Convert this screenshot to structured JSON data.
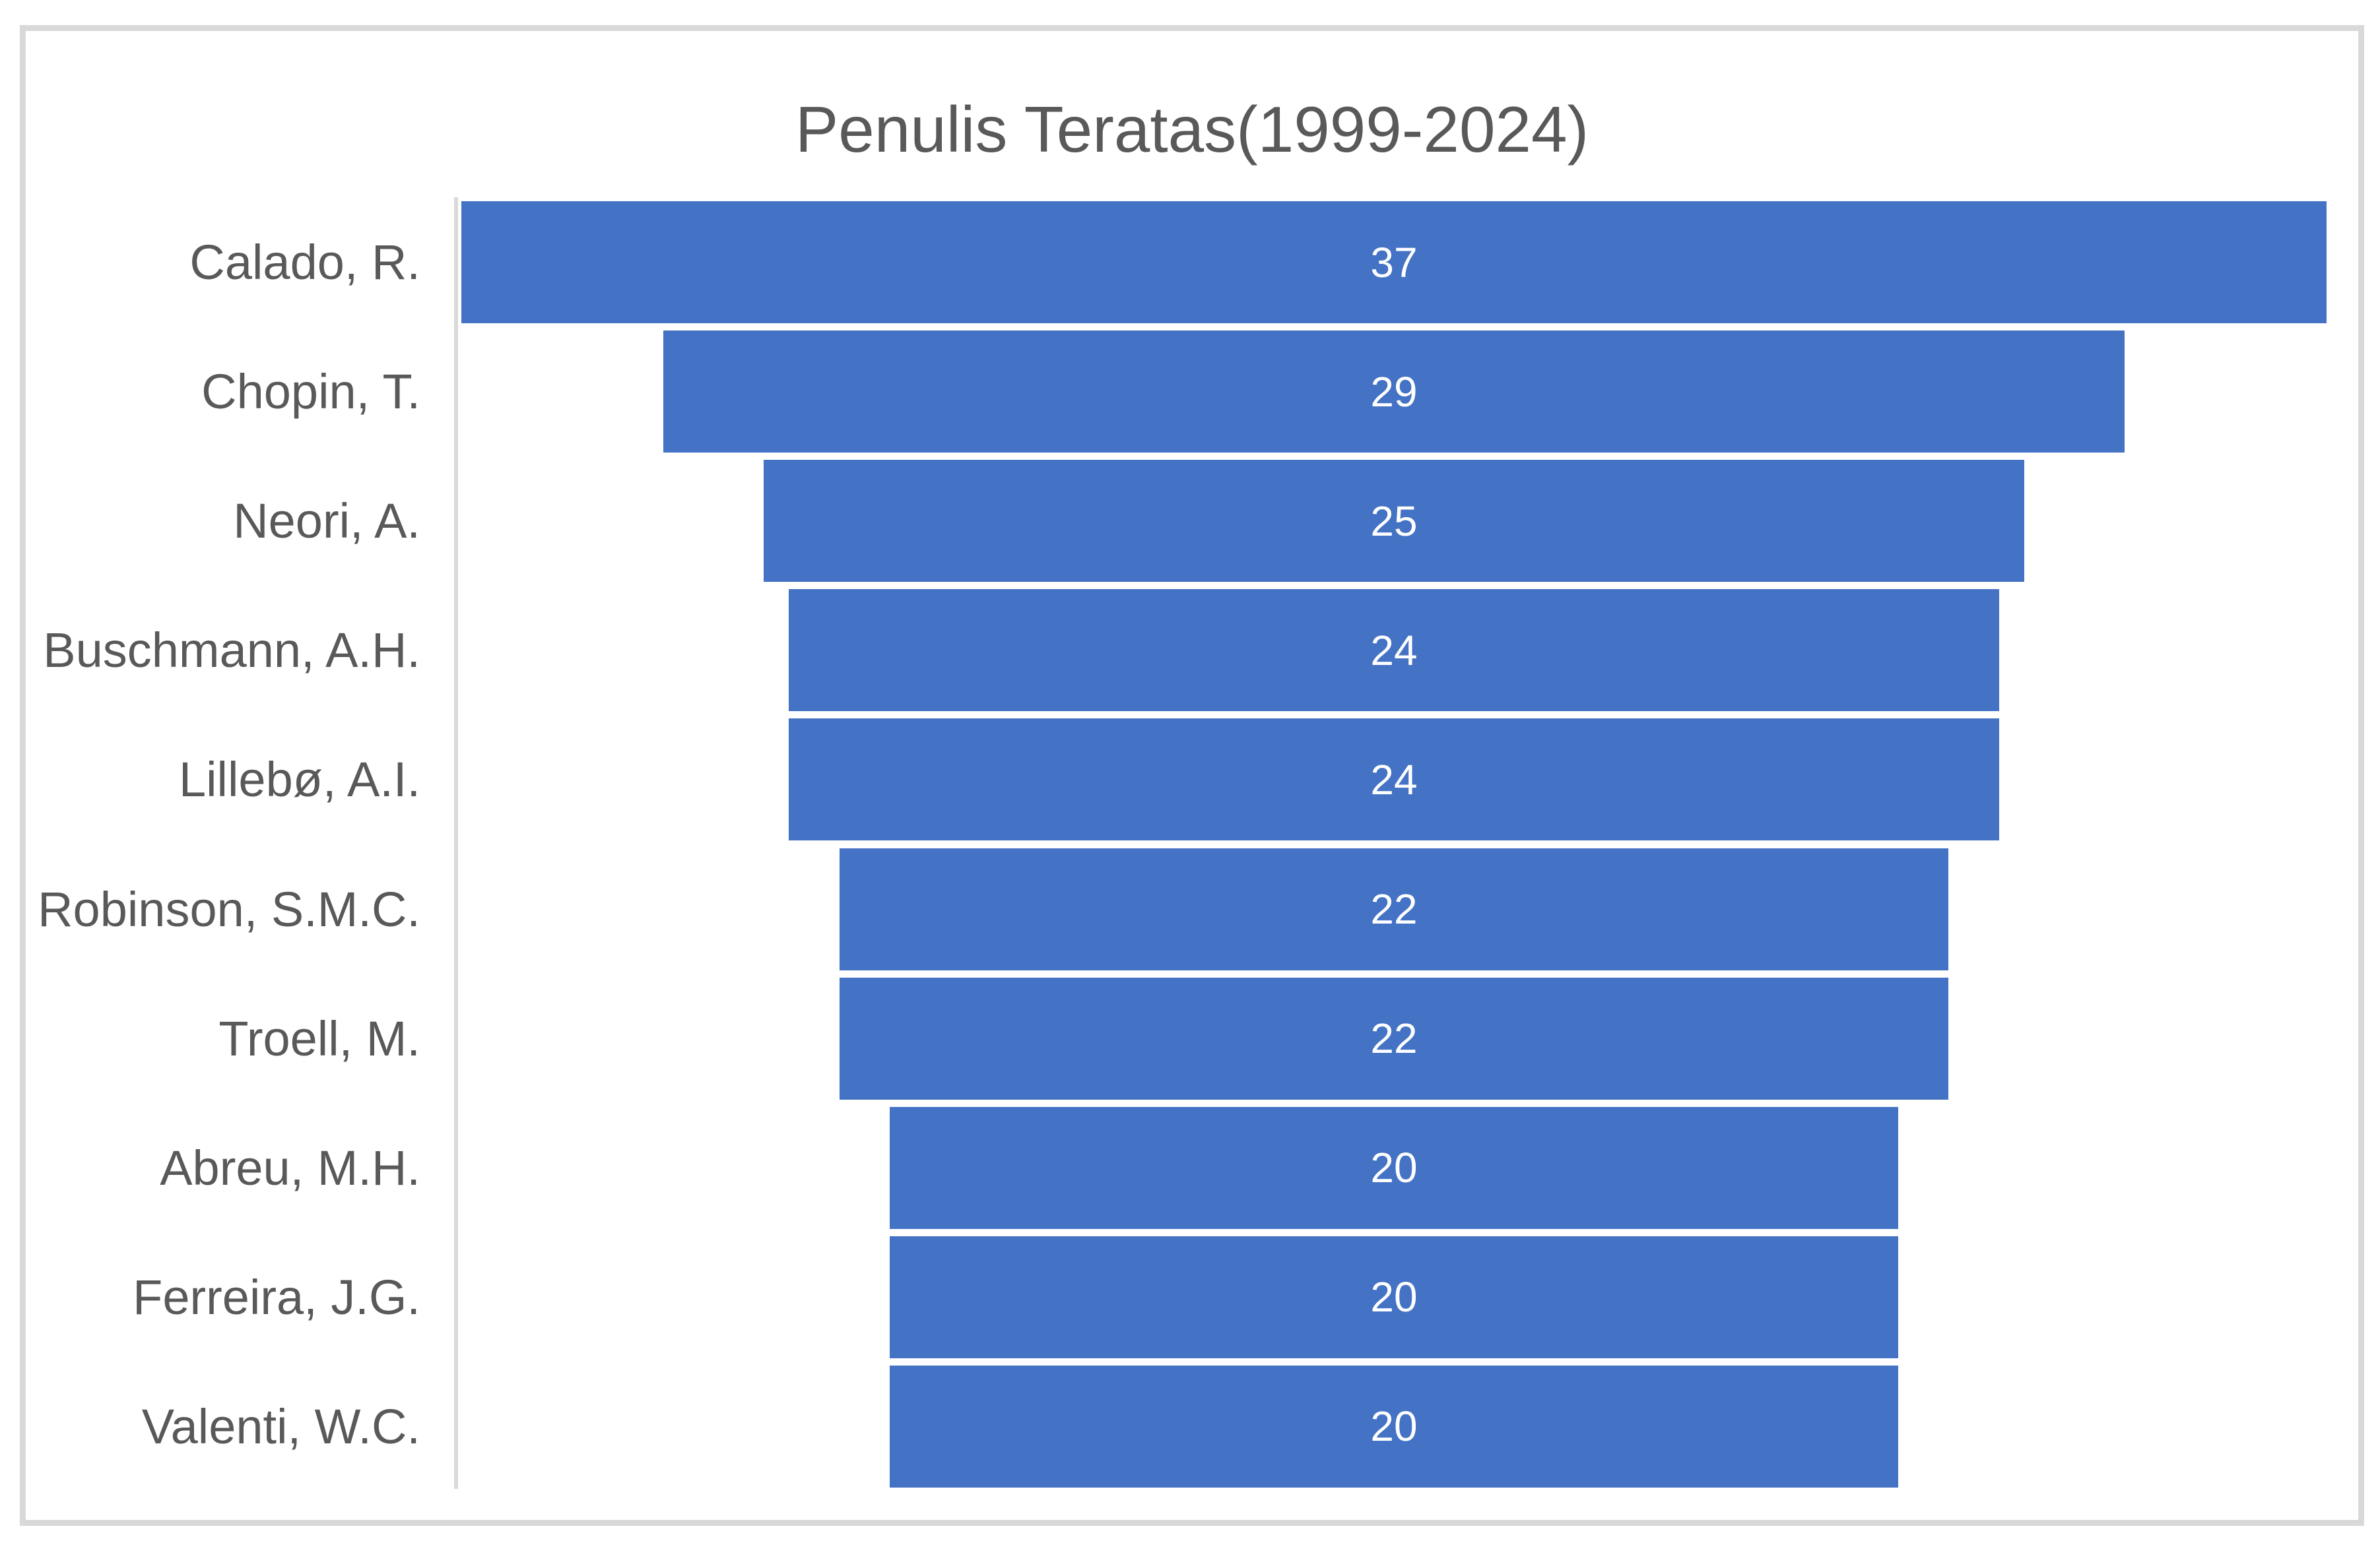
{
  "chart_data": {
    "type": "bar",
    "subtype": "funnel",
    "title": "Penulis Teratas(1999-2024)",
    "categories": [
      "Calado, R.",
      "Chopin, T.",
      "Neori, A.",
      "Buschmann, A.H.",
      "Lillebø, A.I.",
      "Robinson, S.M.C.",
      "Troell, M.",
      "Abreu, M.H.",
      "Ferreira, J.G.",
      "Valenti, W.C."
    ],
    "values": [
      37,
      29,
      25,
      24,
      24,
      22,
      22,
      20,
      20,
      20
    ],
    "xlabel": "",
    "ylabel": "",
    "xlim": [
      0,
      37
    ],
    "grid": false,
    "legend": "none",
    "data_labels": "inside-center",
    "orientation": "horizontal-centered"
  },
  "colors": {
    "bar": "#4472C4",
    "title_text": "#595959",
    "category_text": "#595959",
    "value_text": "#FFFFFF",
    "axis_line": "#D9D9D9",
    "frame_border": "#D9D9D9",
    "background": "#FFFFFF"
  }
}
